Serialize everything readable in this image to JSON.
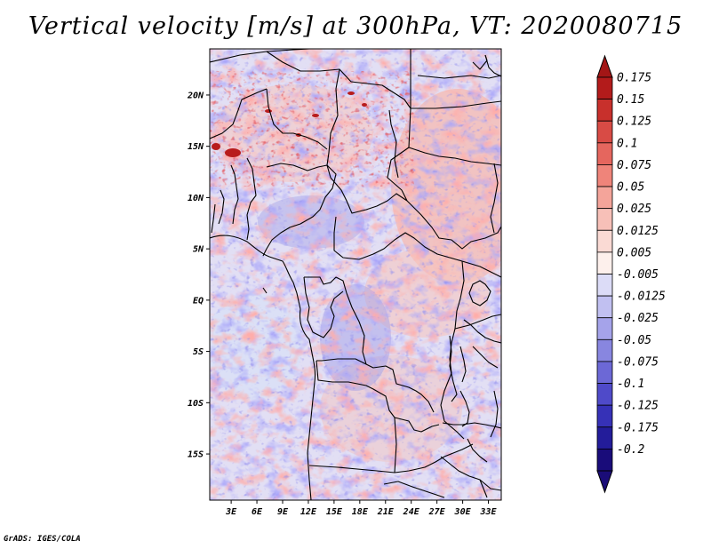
{
  "title": "Vertical velocity [m/s] at 300hPa, VT: 2020080715",
  "footer": "GrADS: IGES/COLA",
  "map": {
    "lat_labels": [
      "20N",
      "15N",
      "10N",
      "5N",
      "EQ",
      "5S",
      "10S",
      "15S"
    ],
    "lat_values": [
      20,
      15,
      10,
      5,
      0,
      -5,
      -10,
      -15
    ],
    "lon_labels": [
      "3E",
      "6E",
      "9E",
      "12E",
      "15E",
      "18E",
      "21E",
      "24E",
      "27E",
      "30E",
      "33E"
    ],
    "lon_values": [
      3,
      6,
      9,
      12,
      15,
      18,
      21,
      24,
      27,
      30,
      33
    ],
    "lon_range": [
      0.5,
      34.5
    ],
    "lat_range": [
      -19.5,
      24.5
    ]
  },
  "colorbar": {
    "labels": [
      "0.175",
      "0.15",
      "0.125",
      "0.1",
      "0.075",
      "0.05",
      "0.025",
      "0.0125",
      "0.005",
      "-0.005",
      "-0.0125",
      "-0.025",
      "-0.05",
      "-0.075",
      "-0.1",
      "-0.125",
      "-0.175",
      "-0.2"
    ],
    "colors": [
      "#b31b1b",
      "#c8302c",
      "#d84b45",
      "#e5665e",
      "#ef847a",
      "#f4a49a",
      "#f7c0b8",
      "#fadad4",
      "#fdf0ec",
      "#ffffff",
      "#dcdcf7",
      "#c1c0f1",
      "#a5a3ea",
      "#8886e0",
      "#6c68d6",
      "#4f4ac9",
      "#3631b7",
      "#231c9a",
      "#190c7a"
    ],
    "cap_top": "#a31616",
    "cap_bottom": "#1a0c78"
  }
}
